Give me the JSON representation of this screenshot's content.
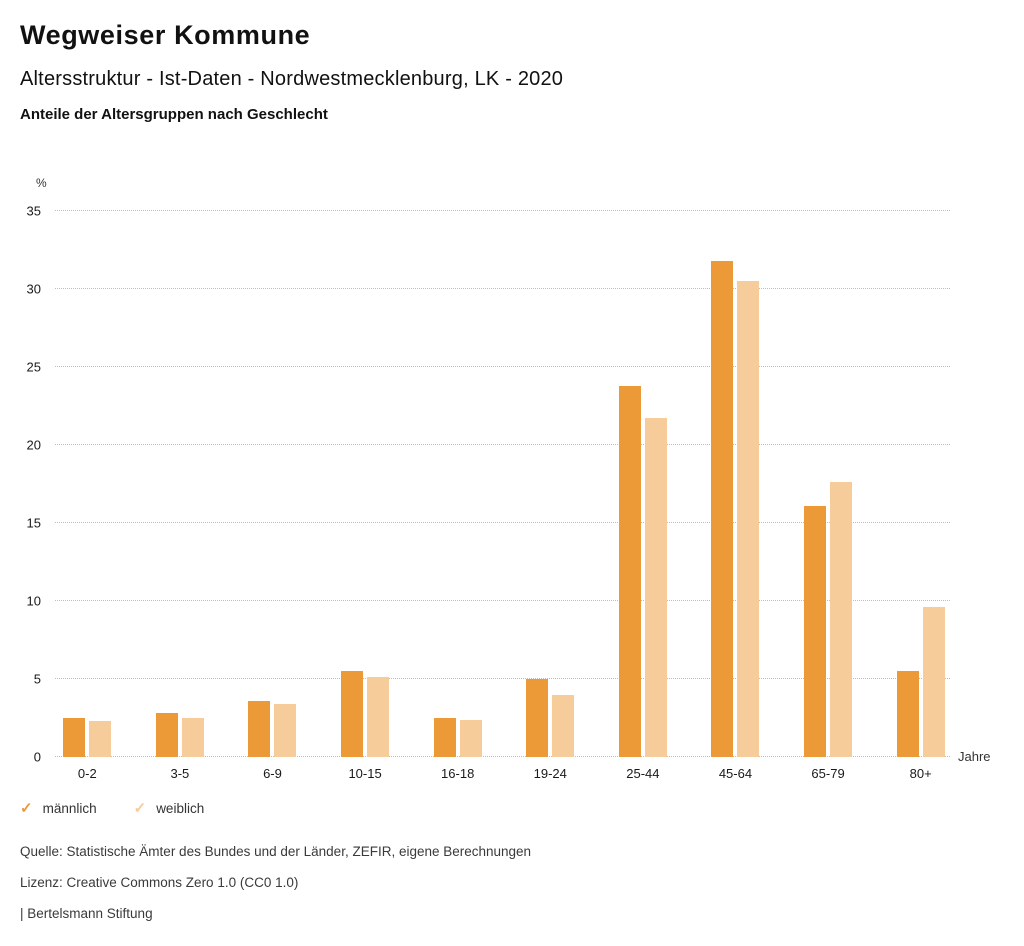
{
  "header": {
    "title": "Wegweiser Kommune",
    "subtitle": "Altersstruktur - Ist-Daten - Nordwestmecklenburg, LK - 2020",
    "caption": "Anteile der Altersgruppen nach Geschlecht"
  },
  "chart_data": {
    "type": "bar",
    "grouped": true,
    "title": "Anteile der Altersgruppen nach Geschlecht",
    "categories": [
      "0-2",
      "3-5",
      "6-9",
      "10-15",
      "16-18",
      "19-24",
      "25-44",
      "45-64",
      "65-79",
      "80+"
    ],
    "series": [
      {
        "name": "männlich",
        "color": "#EC9938",
        "values": [
          2.5,
          2.8,
          3.6,
          5.5,
          2.5,
          5.0,
          23.8,
          31.8,
          16.1,
          5.5
        ]
      },
      {
        "name": "weiblich",
        "color": "#F6CC9B",
        "values": [
          2.3,
          2.5,
          3.4,
          5.1,
          2.4,
          4.0,
          21.7,
          30.5,
          17.6,
          9.6
        ]
      }
    ],
    "ylabel": "%",
    "xlabel": "Jahre",
    "ylim": [
      0,
      35
    ],
    "yticks": [
      0,
      5,
      10,
      15,
      20,
      25,
      30,
      35
    ],
    "grid": "horizontal-dotted",
    "legend_position": "bottom-left"
  },
  "legend": {
    "check_glyph": "✓",
    "items": [
      {
        "label": "männlich",
        "icon": "check-icon",
        "color": "#EC9938"
      },
      {
        "label": "weiblich",
        "icon": "check-icon",
        "color": "#F6CC9B"
      }
    ]
  },
  "footer": {
    "source": "Quelle: Statistische Ämter des Bundes und der Länder, ZEFIR, eigene Berechnungen",
    "license": "Lizenz: Creative Commons Zero 1.0 (CC0 1.0)",
    "attribution": "| Bertelsmann Stiftung"
  },
  "colors": {
    "male": "#EC9938",
    "female": "#F6CC9B",
    "gridline": "#BDBDBD",
    "text": "#1A1A1A",
    "muted_text": "#3A3A3A"
  }
}
